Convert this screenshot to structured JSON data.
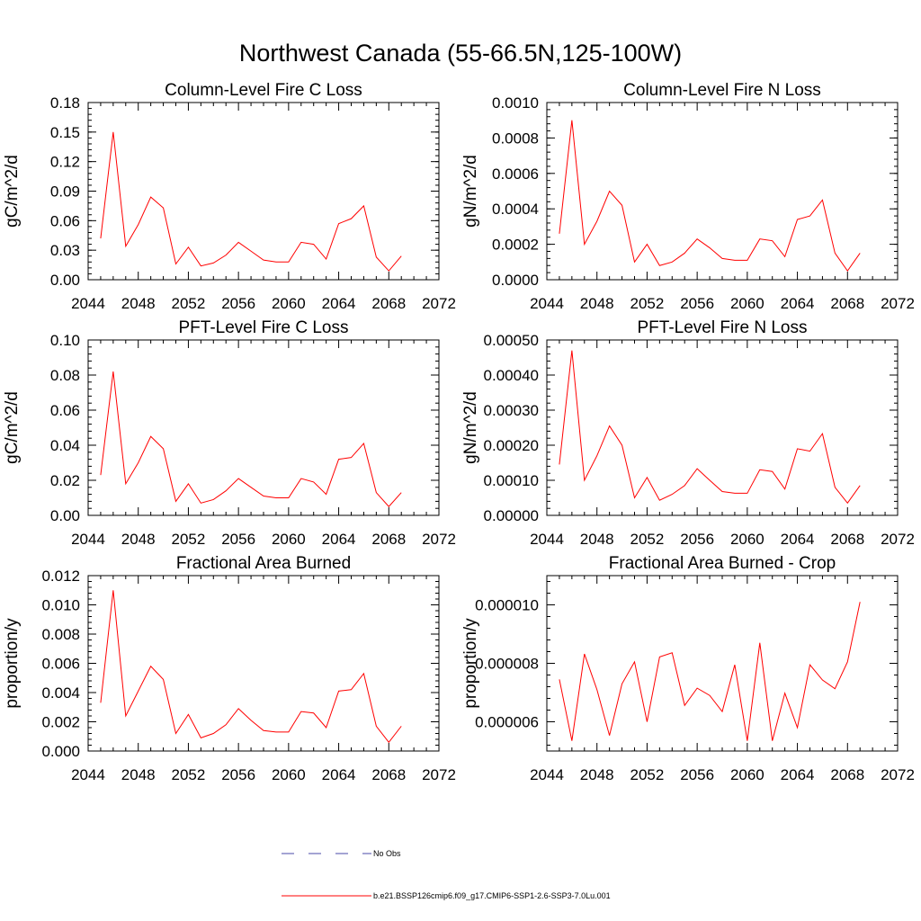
{
  "title": "Northwest Canada (55-66.5N,125-100W)",
  "chart_data": [
    {
      "type": "line",
      "title": "Column-Level Fire C Loss",
      "ylabel": "gC/m^2/d",
      "xlim": [
        2044,
        2072
      ],
      "xticks": [
        "2044",
        "2048",
        "2052",
        "2056",
        "2060",
        "2064",
        "2068",
        "2072"
      ],
      "ylim": [
        0,
        0.18
      ],
      "yticks": [
        "0.00",
        "0.03",
        "0.06",
        "0.09",
        "0.12",
        "0.15",
        "0.18"
      ],
      "x": [
        2045,
        2046,
        2047,
        2048,
        2049,
        2050,
        2051,
        2052,
        2053,
        2054,
        2055,
        2056,
        2057,
        2058,
        2059,
        2060,
        2061,
        2062,
        2063,
        2064,
        2065,
        2066,
        2067,
        2068,
        2069
      ],
      "series": [
        {
          "values": [
            0.042,
            0.15,
            0.034,
            0.056,
            0.084,
            0.073,
            0.016,
            0.033,
            0.014,
            0.017,
            0.025,
            0.038,
            0.029,
            0.02,
            0.018,
            0.018,
            0.038,
            0.036,
            0.021,
            0.057,
            0.062,
            0.075,
            0.023,
            0.009,
            0.024
          ]
        }
      ]
    },
    {
      "type": "line",
      "title": "Column-Level Fire N Loss",
      "ylabel": "gN/m^2/d",
      "xlim": [
        2044,
        2072
      ],
      "xticks": [
        "2044",
        "2048",
        "2052",
        "2056",
        "2060",
        "2064",
        "2068",
        "2072"
      ],
      "ylim": [
        0,
        0.001
      ],
      "yticks": [
        "0.0000",
        "0.0002",
        "0.0004",
        "0.0006",
        "0.0008",
        "0.0010"
      ],
      "x": [
        2045,
        2046,
        2047,
        2048,
        2049,
        2050,
        2051,
        2052,
        2053,
        2054,
        2055,
        2056,
        2057,
        2058,
        2059,
        2060,
        2061,
        2062,
        2063,
        2064,
        2065,
        2066,
        2067,
        2068,
        2069
      ],
      "series": [
        {
          "values": [
            0.00026,
            0.0009,
            0.0002,
            0.00033,
            0.0005,
            0.00042,
            0.0001,
            0.0002,
            8e-05,
            0.0001,
            0.00015,
            0.00023,
            0.00018,
            0.00012,
            0.00011,
            0.00011,
            0.00023,
            0.00022,
            0.00013,
            0.00034,
            0.00036,
            0.00045,
            0.00015,
            5e-05,
            0.00015
          ]
        }
      ]
    },
    {
      "type": "line",
      "title": "PFT-Level Fire C Loss",
      "ylabel": "gC/m^2/d",
      "xlim": [
        2044,
        2072
      ],
      "xticks": [
        "2044",
        "2048",
        "2052",
        "2056",
        "2060",
        "2064",
        "2068",
        "2072"
      ],
      "ylim": [
        0,
        0.1
      ],
      "yticks": [
        "0.00",
        "0.02",
        "0.04",
        "0.06",
        "0.08",
        "0.10"
      ],
      "x": [
        2045,
        2046,
        2047,
        2048,
        2049,
        2050,
        2051,
        2052,
        2053,
        2054,
        2055,
        2056,
        2057,
        2058,
        2059,
        2060,
        2061,
        2062,
        2063,
        2064,
        2065,
        2066,
        2067,
        2068,
        2069
      ],
      "series": [
        {
          "values": [
            0.023,
            0.082,
            0.018,
            0.03,
            0.045,
            0.038,
            0.008,
            0.018,
            0.007,
            0.009,
            0.014,
            0.021,
            0.016,
            0.011,
            0.01,
            0.01,
            0.021,
            0.019,
            0.012,
            0.032,
            0.033,
            0.041,
            0.013,
            0.005,
            0.013
          ]
        }
      ]
    },
    {
      "type": "line",
      "title": "PFT-Level Fire N Loss",
      "ylabel": "gN/m^2/d",
      "xlim": [
        2044,
        2072
      ],
      "xticks": [
        "2044",
        "2048",
        "2052",
        "2056",
        "2060",
        "2064",
        "2068",
        "2072"
      ],
      "ylim": [
        0,
        0.0005
      ],
      "yticks": [
        "0.00000",
        "0.00010",
        "0.00020",
        "0.00030",
        "0.00040",
        "0.00050"
      ],
      "x": [
        2045,
        2046,
        2047,
        2048,
        2049,
        2050,
        2051,
        2052,
        2053,
        2054,
        2055,
        2056,
        2057,
        2058,
        2059,
        2060,
        2061,
        2062,
        2063,
        2064,
        2065,
        2066,
        2067,
        2068,
        2069
      ],
      "series": [
        {
          "values": [
            0.000145,
            0.00047,
            0.0001,
            0.00017,
            0.000255,
            0.0002,
            5e-05,
            0.000108,
            4.3e-05,
            6e-05,
            8.5e-05,
            0.000133,
            0.0001,
            6.8e-05,
            6.3e-05,
            6.3e-05,
            0.00013,
            0.000125,
            7.5e-05,
            0.00019,
            0.000183,
            0.000233,
            8e-05,
            3.5e-05,
            8.5e-05
          ]
        }
      ]
    },
    {
      "type": "line",
      "title": "Fractional Area Burned",
      "ylabel": "proportion/y",
      "xlim": [
        2044,
        2072
      ],
      "xticks": [
        "2044",
        "2048",
        "2052",
        "2056",
        "2060",
        "2064",
        "2068",
        "2072"
      ],
      "ylim": [
        0,
        0.012
      ],
      "yticks": [
        "0.000",
        "0.002",
        "0.004",
        "0.006",
        "0.008",
        "0.010",
        "0.012"
      ],
      "x": [
        2045,
        2046,
        2047,
        2048,
        2049,
        2050,
        2051,
        2052,
        2053,
        2054,
        2055,
        2056,
        2057,
        2058,
        2059,
        2060,
        2061,
        2062,
        2063,
        2064,
        2065,
        2066,
        2067,
        2068,
        2069
      ],
      "series": [
        {
          "values": [
            0.0033,
            0.011,
            0.0024,
            0.0041,
            0.0058,
            0.0049,
            0.0012,
            0.0025,
            0.0009,
            0.0012,
            0.0018,
            0.0029,
            0.0021,
            0.0014,
            0.0013,
            0.0013,
            0.0027,
            0.0026,
            0.0016,
            0.0041,
            0.0042,
            0.0053,
            0.0017,
            0.0006,
            0.0017
          ]
        }
      ]
    },
    {
      "type": "line",
      "title": "Fractional Area Burned - Crop",
      "ylabel": "proportion/y",
      "xlim": [
        2044,
        2072
      ],
      "xticks": [
        "2044",
        "2048",
        "2052",
        "2056",
        "2060",
        "2064",
        "2068",
        "2072"
      ],
      "ylim": [
        5e-06,
        1.1e-05
      ],
      "yticks": [
        "0.000006",
        "0.000008",
        "0.000010"
      ],
      "yticks_at": [
        6e-06,
        8e-06,
        1e-05
      ],
      "x": [
        2045,
        2046,
        2047,
        2048,
        2049,
        2050,
        2051,
        2052,
        2053,
        2054,
        2055,
        2056,
        2057,
        2058,
        2059,
        2060,
        2061,
        2062,
        2063,
        2064,
        2065,
        2066,
        2067,
        2068,
        2069
      ],
      "series": [
        {
          "values": [
            7.45e-06,
            5.35e-06,
            8.32e-06,
            7.1e-06,
            5.53e-06,
            7.3e-06,
            8.05e-06,
            6e-06,
            8.22e-06,
            8.36e-06,
            6.56e-06,
            7.15e-06,
            6.9e-06,
            6.35e-06,
            7.95e-06,
            5.35e-06,
            8.7e-06,
            5.35e-06,
            6.98e-06,
            5.8e-06,
            7.95e-06,
            7.43e-06,
            7.13e-06,
            8.05e-06,
            1.01e-05
          ]
        }
      ]
    }
  ],
  "legend": [
    {
      "label": "No Obs",
      "color": "#4a4aa8",
      "dash": "dashed"
    },
    {
      "label": "b.e21.BSSP126cmip6.f09_g17.CMIP6-SSP1-2.6-SSP3-7.0Lu.001",
      "color": "#ff0000",
      "dash": "solid"
    }
  ]
}
